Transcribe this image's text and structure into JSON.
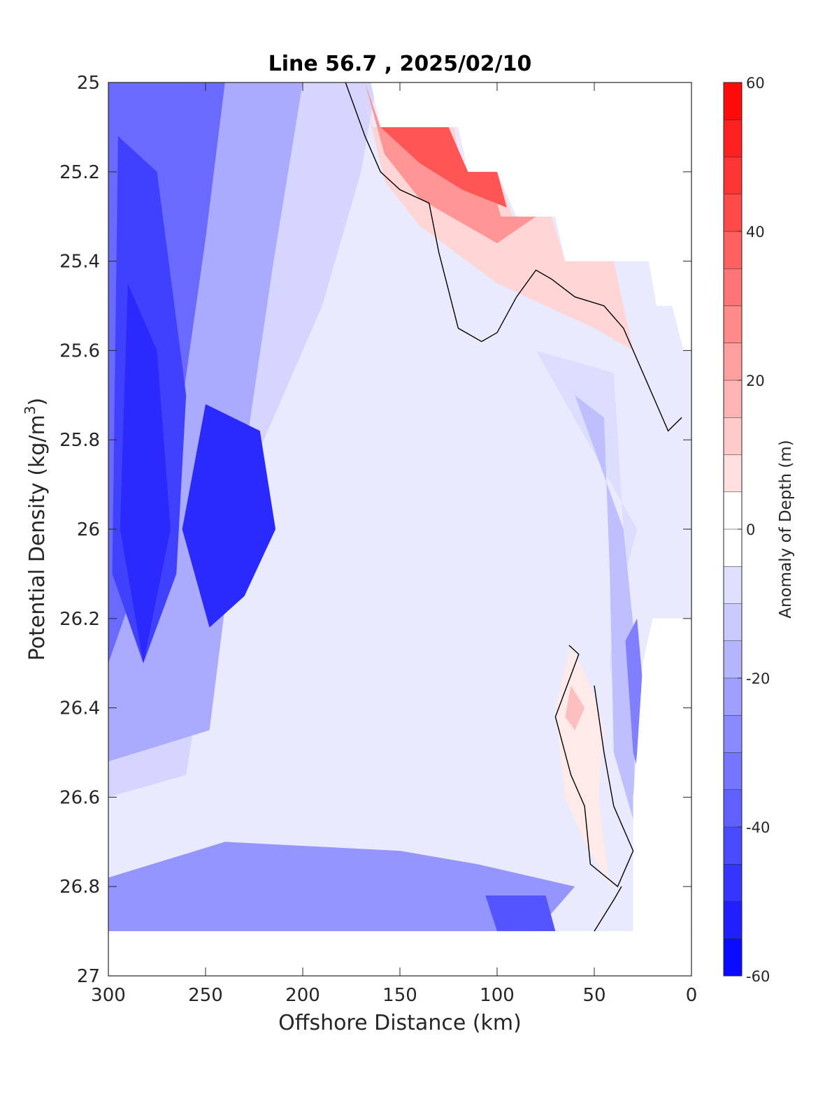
{
  "chart_data": {
    "type": "heatmap",
    "title": "Line 56.7 , 2025/02/10",
    "xlabel": "Offshore Distance (km)",
    "ylabel_main": "Potential Density (kg/m",
    "ylabel_sup": "3",
    "ylabel_close": ")",
    "colorbar_label": "Anomaly of Depth (m)",
    "xlim": [
      300,
      0
    ],
    "ylim": [
      25,
      27
    ],
    "x_reversed": true,
    "y_reversed": true,
    "x_ticks": [
      "300",
      "250",
      "200",
      "150",
      "100",
      "50",
      "0"
    ],
    "x_tick_values": [
      300,
      250,
      200,
      150,
      100,
      50,
      0
    ],
    "y_ticks": [
      "25",
      "25.2",
      "25.4",
      "25.6",
      "25.8",
      "26",
      "26.2",
      "26.4",
      "26.6",
      "26.8",
      "27"
    ],
    "y_tick_values": [
      25,
      25.2,
      25.4,
      25.6,
      25.8,
      26,
      26.2,
      26.4,
      26.6,
      26.8,
      27
    ],
    "colorbar_ticks": [
      "60",
      "40",
      "20",
      "0",
      "-20",
      "-40",
      "-60"
    ],
    "colorbar_tick_values": [
      60,
      40,
      20,
      0,
      -20,
      -40,
      -60
    ],
    "clim": [
      -60,
      60
    ],
    "contour_step": 5,
    "zero_contour_color": "#000000",
    "colormap": "blue-white-red",
    "regions": [
      {
        "level": -10,
        "polygon": [
          [
            300,
            25
          ],
          [
            162,
            25
          ],
          [
            170,
            25.2
          ],
          [
            190,
            25.5
          ],
          [
            240,
            26.0
          ],
          [
            260,
            26.55
          ],
          [
            300,
            26.6
          ]
        ]
      },
      {
        "level": -20,
        "polygon": [
          [
            300,
            25
          ],
          [
            200,
            25
          ],
          [
            215,
            25.4
          ],
          [
            232,
            25.9
          ],
          [
            248,
            26.45
          ],
          [
            300,
            26.52
          ]
        ]
      },
      {
        "level": -35,
        "polygon": [
          [
            300,
            25
          ],
          [
            240,
            25
          ],
          [
            250,
            25.35
          ],
          [
            268,
            25.9
          ],
          [
            300,
            26.3
          ]
        ]
      },
      {
        "level": -45,
        "polygon": [
          [
            295,
            25.12
          ],
          [
            275,
            25.2
          ],
          [
            260,
            25.7
          ],
          [
            265,
            26.1
          ],
          [
            282,
            26.3
          ],
          [
            298,
            26.1
          ]
        ]
      },
      {
        "level": -50,
        "polygon": [
          [
            290,
            25.45
          ],
          [
            275,
            25.6
          ],
          [
            268,
            26.0
          ],
          [
            282,
            26.3
          ],
          [
            294,
            26.0
          ]
        ]
      },
      {
        "level": -50,
        "polygon": [
          [
            250,
            25.72
          ],
          [
            222,
            25.78
          ],
          [
            214,
            26.0
          ],
          [
            230,
            26.15
          ],
          [
            248,
            26.22
          ],
          [
            262,
            26.0
          ]
        ]
      },
      {
        "level": 10,
        "polygon": [
          [
            170,
            25
          ],
          [
            164,
            25.1
          ],
          [
            122,
            25.1
          ],
          [
            118,
            25.2
          ],
          [
            100,
            25.2
          ],
          [
            92,
            25.3
          ],
          [
            72,
            25.3
          ],
          [
            65,
            25.4
          ],
          [
            40,
            25.4
          ],
          [
            35,
            25.5
          ],
          [
            30,
            25.6
          ],
          [
            50,
            25.55
          ],
          [
            100,
            25.45
          ],
          [
            140,
            25.32
          ],
          [
            158,
            25.22
          ]
        ]
      },
      {
        "level": 25,
        "polygon": [
          [
            168,
            25
          ],
          [
            160,
            25.1
          ],
          [
            125,
            25.1
          ],
          [
            120,
            25.2
          ],
          [
            105,
            25.2
          ],
          [
            98,
            25.3
          ],
          [
            80,
            25.3
          ],
          [
            100,
            25.36
          ],
          [
            140,
            25.26
          ],
          [
            158,
            25.16
          ]
        ]
      },
      {
        "level": 40,
        "polygon": [
          [
            160,
            25.1
          ],
          [
            125,
            25.1
          ],
          [
            115,
            25.2
          ],
          [
            100,
            25.2
          ],
          [
            95,
            25.28
          ],
          [
            118,
            25.24
          ],
          [
            140,
            25.18
          ]
        ]
      },
      {
        "level": -8,
        "polygon": [
          [
            80,
            25.6
          ],
          [
            40,
            25.65
          ],
          [
            35,
            26.0
          ],
          [
            42,
            26.3
          ],
          [
            32,
            26.6
          ],
          [
            40,
            26.2
          ],
          [
            28,
            26.0
          ]
        ]
      },
      {
        "level": -15,
        "polygon": [
          [
            60,
            25.7
          ],
          [
            45,
            25.75
          ],
          [
            42,
            26.1
          ],
          [
            40,
            26.5
          ],
          [
            30,
            26.65
          ],
          [
            28,
            26.3
          ],
          [
            35,
            26.0
          ]
        ]
      },
      {
        "level": -30,
        "polygon": [
          [
            34,
            26.25
          ],
          [
            28,
            26.2
          ],
          [
            25,
            26.35
          ],
          [
            27,
            26.55
          ],
          [
            30,
            26.5
          ]
        ]
      },
      {
        "level": -25,
        "polygon": [
          [
            240,
            26.7
          ],
          [
            150,
            26.72
          ],
          [
            110,
            26.75
          ],
          [
            60,
            26.8
          ],
          [
            80,
            26.9
          ],
          [
            300,
            26.9
          ],
          [
            300,
            26.78
          ]
        ]
      },
      {
        "level": -40,
        "polygon": [
          [
            106,
            26.82
          ],
          [
            75,
            26.82
          ],
          [
            70,
            26.9
          ],
          [
            100,
            26.9
          ]
        ]
      },
      {
        "level": 5,
        "polygon": [
          [
            62,
            26.26
          ],
          [
            70,
            26.4
          ],
          [
            65,
            26.6
          ],
          [
            55,
            26.7
          ],
          [
            42,
            26.8
          ],
          [
            48,
            26.6
          ],
          [
            45,
            26.45
          ],
          [
            52,
            26.35
          ]
        ]
      },
      {
        "level": 15,
        "polygon": [
          [
            62,
            26.35
          ],
          [
            55,
            26.4
          ],
          [
            60,
            26.45
          ],
          [
            65,
            26.42
          ]
        ]
      }
    ],
    "blank_regions": [
      {
        "polygon": [
          [
            162,
            25
          ],
          [
            0,
            25
          ],
          [
            0,
            25.6
          ],
          [
            4,
            25.6
          ],
          [
            10,
            25.5
          ],
          [
            18,
            25.5
          ],
          [
            22,
            25.4
          ],
          [
            65,
            25.4
          ],
          [
            70,
            25.3
          ],
          [
            90,
            25.3
          ],
          [
            100,
            25.2
          ],
          [
            115,
            25.2
          ],
          [
            120,
            25.1
          ],
          [
            160,
            25.1
          ],
          [
            165,
            25
          ]
        ]
      },
      {
        "polygon": [
          [
            4,
            26.2
          ],
          [
            0,
            26.2
          ],
          [
            0,
            26.9
          ],
          [
            30,
            26.9
          ],
          [
            30,
            26.6
          ],
          [
            28,
            26.5
          ],
          [
            25,
            26.3
          ],
          [
            20,
            26.2
          ]
        ]
      },
      {
        "polygon": [
          [
            300,
            26.9
          ],
          [
            0,
            26.9
          ],
          [
            0,
            27
          ],
          [
            300,
            27
          ]
        ]
      }
    ],
    "zero_contours": [
      [
        [
          178,
          25
        ],
        [
          168,
          25.12
        ],
        [
          160,
          25.2
        ],
        [
          150,
          25.24
        ],
        [
          135,
          25.27
        ],
        [
          130,
          25.38
        ],
        [
          120,
          25.55
        ],
        [
          108,
          25.58
        ],
        [
          100,
          25.56
        ],
        [
          90,
          25.48
        ],
        [
          80,
          25.42
        ],
        [
          72,
          25.44
        ],
        [
          60,
          25.48
        ],
        [
          45,
          25.5
        ],
        [
          35,
          25.55
        ],
        [
          25,
          25.65
        ],
        [
          18,
          25.72
        ],
        [
          12,
          25.78
        ],
        [
          5,
          25.75
        ]
      ],
      [
        [
          63,
          26.26
        ],
        [
          58,
          26.28
        ],
        [
          70,
          26.42
        ],
        [
          62,
          26.55
        ],
        [
          55,
          26.62
        ],
        [
          52,
          26.75
        ],
        [
          38,
          26.8
        ],
        [
          30,
          26.72
        ],
        [
          40,
          26.62
        ],
        [
          45,
          26.5
        ],
        [
          50,
          26.35
        ]
      ],
      [
        [
          50,
          26.9
        ],
        [
          40,
          26.83
        ],
        [
          36,
          26.8
        ]
      ]
    ]
  }
}
